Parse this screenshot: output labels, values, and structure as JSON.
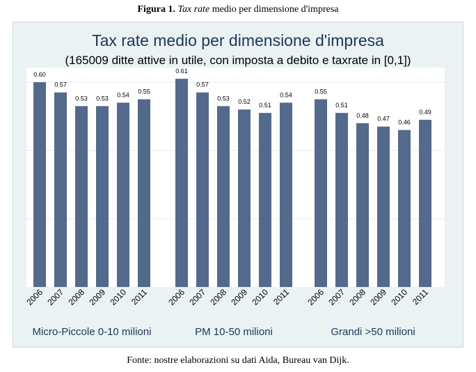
{
  "figure": {
    "label": "Figura 1.",
    "title_italic": "Tax rate",
    "title_rest": " medio per dimensione d'impresa"
  },
  "source": "Fonte: nostre elaborazioni su dati Aida, Bureau van Dijk.",
  "colors": {
    "bar": "#536a8c",
    "panel": "#eaf2f3",
    "plot_bg": "#ffffff",
    "grid": "#e2eaee",
    "title": "#1d3658"
  },
  "chart_data": {
    "type": "bar",
    "title": "Tax rate medio per dimensione d'impresa",
    "subtitle": "(165009 ditte attive in utile, con imposta a debito e taxrate in [0,1])",
    "ylim": [
      0,
      0.6
    ],
    "grid": true,
    "groups": [
      {
        "name": "Micro-Piccole 0-10 milioni",
        "categories": [
          "2006",
          "2007",
          "2008",
          "2009",
          "2010",
          "2011"
        ],
        "values": [
          0.6,
          0.57,
          0.53,
          0.53,
          0.54,
          0.55
        ]
      },
      {
        "name": "PM 10-50 milioni",
        "categories": [
          "2006",
          "2007",
          "2008",
          "2009",
          "2010",
          "2011"
        ],
        "values": [
          0.61,
          0.57,
          0.53,
          0.52,
          0.51,
          0.54
        ]
      },
      {
        "name": "Grandi >50 milioni",
        "categories": [
          "2006",
          "2007",
          "2008",
          "2009",
          "2010",
          "2011"
        ],
        "values": [
          0.55,
          0.51,
          0.48,
          0.47,
          0.46,
          0.49
        ]
      }
    ]
  }
}
